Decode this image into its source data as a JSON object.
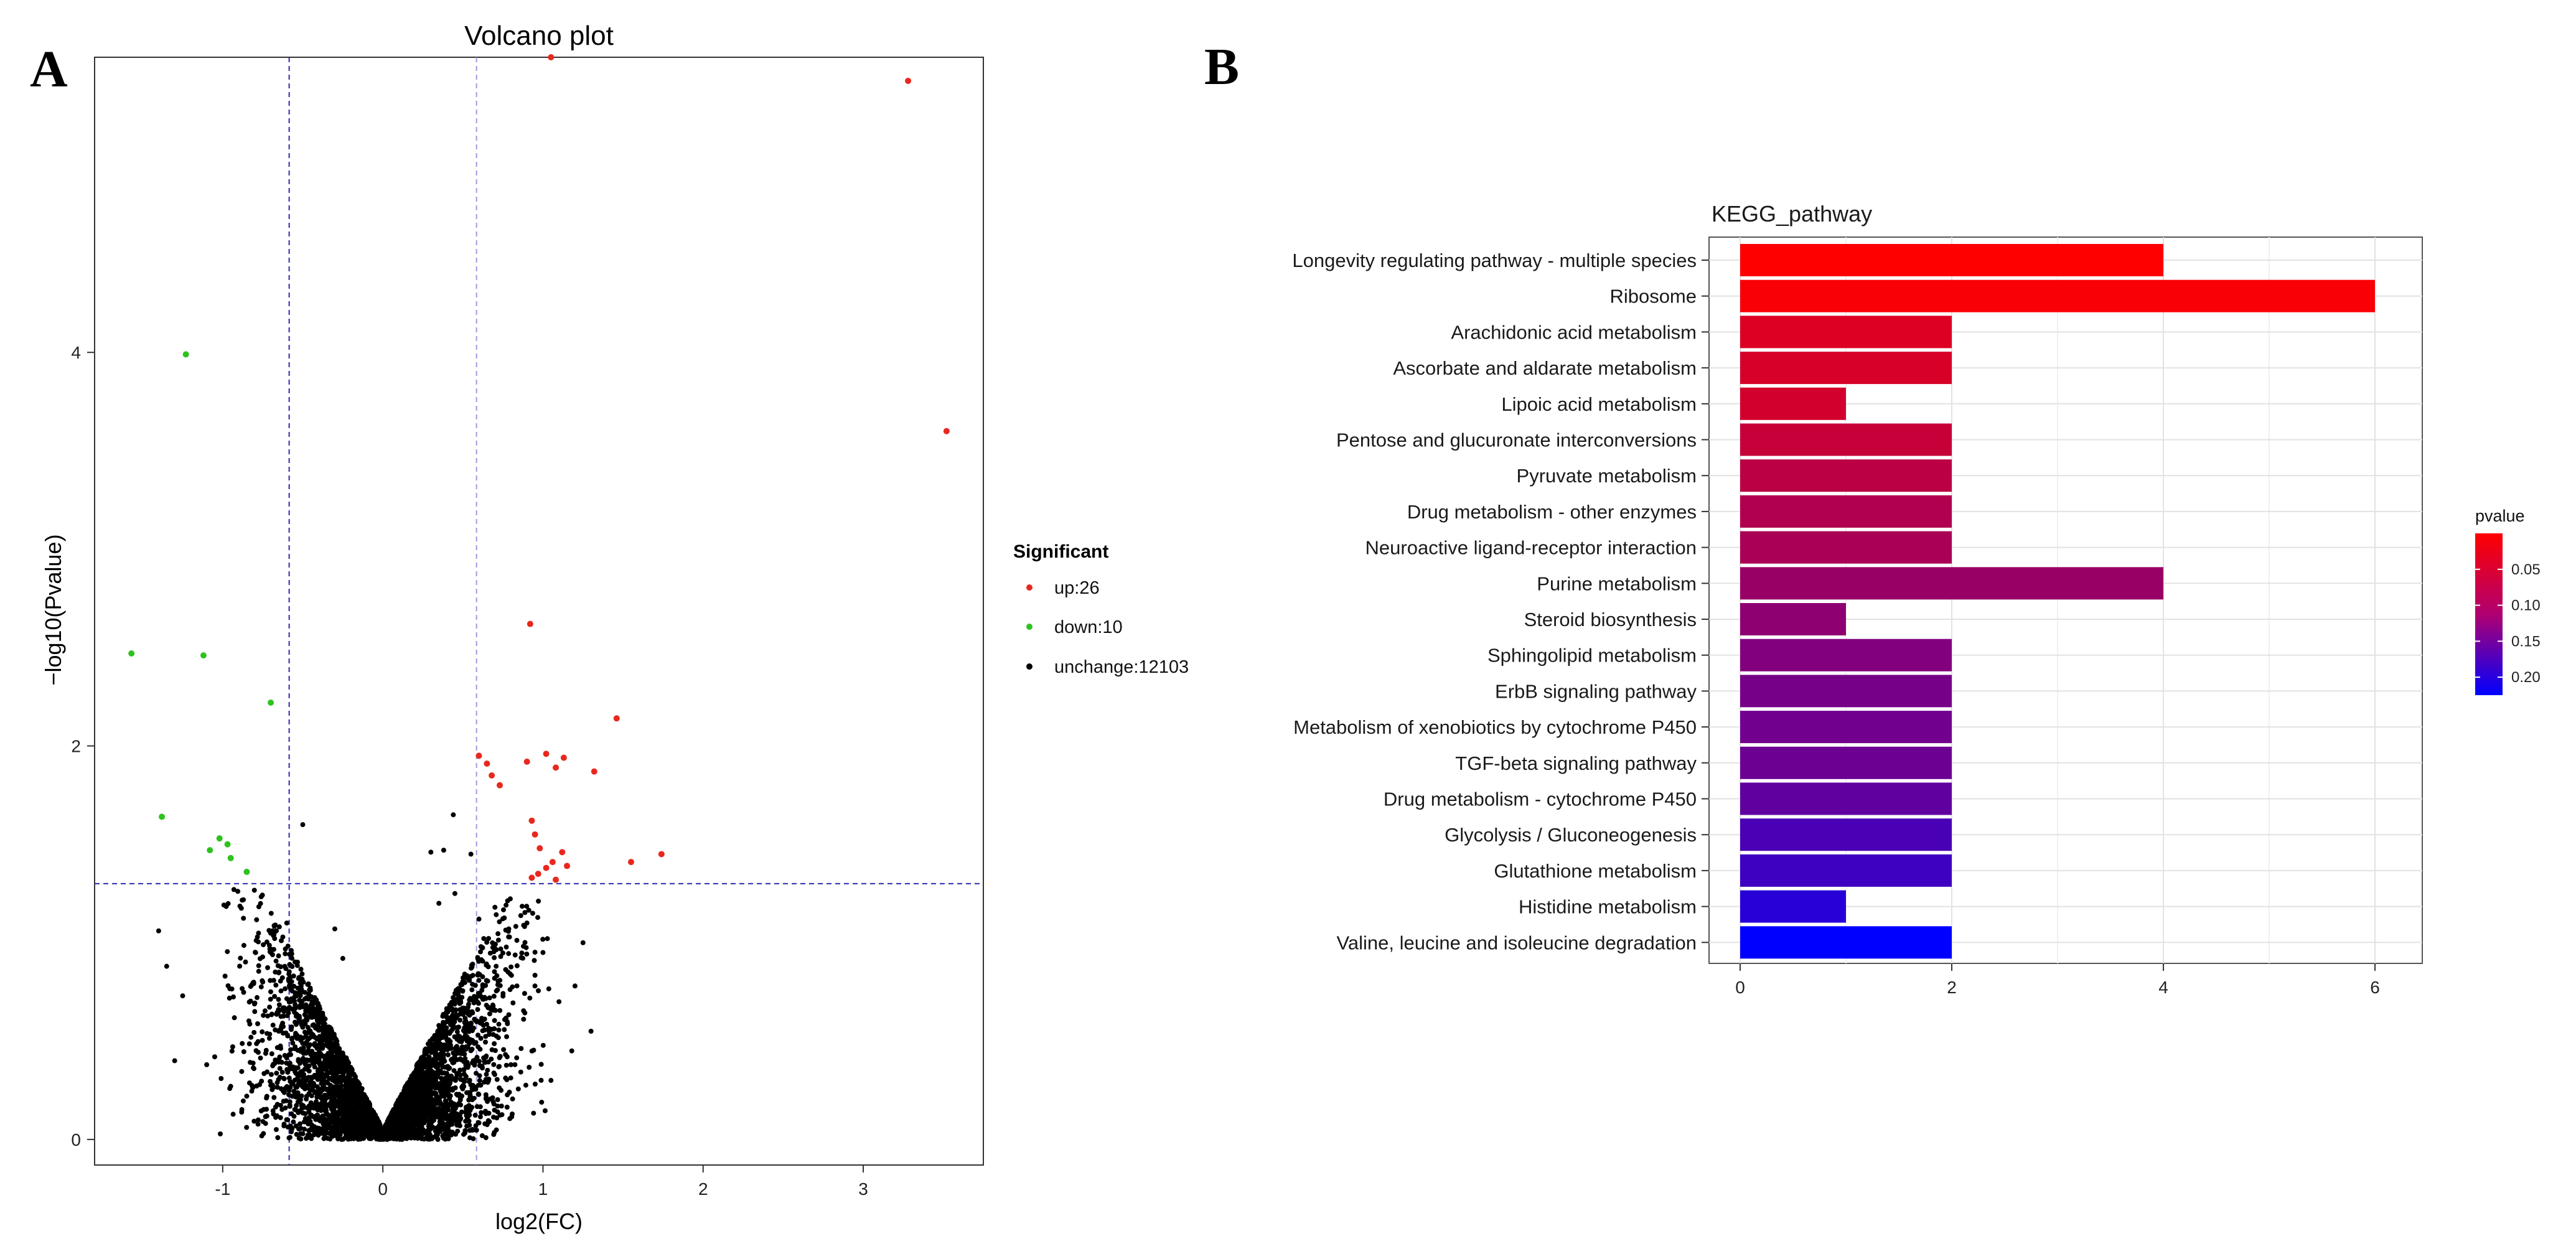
{
  "panels": {
    "a": "A",
    "b": "B"
  },
  "chart_data": [
    {
      "type": "scatter",
      "title": "Volcano plot",
      "xlabel": "log2(FC)",
      "ylabel": "−log10(Pvalue)",
      "xlim": [
        -1.8,
        3.75
      ],
      "ylim": [
        -0.13,
        5.5
      ],
      "x_ticks": [
        -1,
        0,
        1,
        2,
        3
      ],
      "y_ticks": [
        0,
        2,
        4
      ],
      "thresholds": {
        "log2fc": [
          -0.585,
          0.585
        ],
        "neg_log10_p": 1.3
      },
      "legend": {
        "title": "Significant",
        "items": [
          {
            "label": "up:26",
            "color": "#e8281e"
          },
          {
            "label": "down:10",
            "color": "#2fc21f"
          },
          {
            "label": "unchange:12103",
            "color": "#000000"
          }
        ]
      },
      "series": [
        {
          "name": "up",
          "color": "#e8281e",
          "points": [
            [
              1.05,
              5.5
            ],
            [
              3.28,
              5.38
            ],
            [
              3.52,
              3.6
            ],
            [
              0.92,
              2.62
            ],
            [
              1.46,
              2.14
            ],
            [
              0.6,
              1.95
            ],
            [
              0.65,
              1.91
            ],
            [
              0.68,
              1.85
            ],
            [
              0.73,
              1.8
            ],
            [
              0.9,
              1.92
            ],
            [
              1.02,
              1.96
            ],
            [
              1.08,
              1.89
            ],
            [
              1.13,
              1.94
            ],
            [
              1.32,
              1.87
            ],
            [
              0.93,
              1.62
            ],
            [
              0.95,
              1.55
            ],
            [
              0.98,
              1.48
            ],
            [
              1.06,
              1.41
            ],
            [
              1.12,
              1.46
            ],
            [
              1.55,
              1.41
            ],
            [
              1.74,
              1.45
            ],
            [
              0.93,
              1.33
            ],
            [
              0.97,
              1.35
            ],
            [
              1.02,
              1.38
            ],
            [
              1.08,
              1.32
            ],
            [
              1.15,
              1.39
            ]
          ]
        },
        {
          "name": "down",
          "color": "#2fc21f",
          "points": [
            [
              -1.23,
              3.99
            ],
            [
              -1.57,
              2.47
            ],
            [
              -1.12,
              2.46
            ],
            [
              -0.7,
              2.22
            ],
            [
              -1.38,
              1.64
            ],
            [
              -1.02,
              1.53
            ],
            [
              -0.97,
              1.5
            ],
            [
              -1.08,
              1.47
            ],
            [
              -0.95,
              1.43
            ],
            [
              -0.85,
              1.36
            ]
          ]
        },
        {
          "name": "unchange",
          "color": "#000000",
          "count": 12103,
          "points": [
            [
              -0.5,
              1.6
            ],
            [
              0.44,
              1.65
            ],
            [
              0.3,
              1.46
            ],
            [
              0.38,
              1.47
            ],
            [
              0.55,
              1.45
            ],
            [
              -1.4,
              1.06
            ],
            [
              -1.3,
              0.4
            ],
            [
              -1.35,
              0.88
            ],
            [
              -1.25,
              0.73
            ],
            [
              -0.93,
              1.27
            ],
            [
              -1.05,
              0.42
            ],
            [
              -1.1,
              0.38
            ],
            [
              -0.85,
              0.22
            ],
            [
              -0.95,
              0.27
            ],
            [
              1.3,
              0.55
            ],
            [
              1.2,
              0.78
            ],
            [
              1.25,
              1.0
            ],
            [
              1.1,
              0.7
            ],
            [
              1.0,
              0.95
            ],
            [
              0.9,
              1.1
            ],
            [
              0.95,
              0.78
            ],
            [
              1.18,
              0.45
            ],
            [
              1.05,
              0.3
            ],
            [
              0.8,
              0.38
            ],
            [
              -0.75,
              0.8
            ],
            [
              -0.7,
              0.95
            ],
            [
              -0.8,
              0.65
            ],
            [
              -0.6,
              1.1
            ],
            [
              -0.65,
              0.55
            ],
            [
              -0.3,
              1.07
            ],
            [
              -0.25,
              0.92
            ],
            [
              0.35,
              1.2
            ],
            [
              0.45,
              1.25
            ],
            [
              0.6,
              1.12
            ],
            [
              0.7,
              1.18
            ]
          ]
        }
      ]
    },
    {
      "type": "bar",
      "orientation": "horizontal",
      "title": "KEGG_pathway",
      "xlim": [
        0,
        6.3
      ],
      "x_ticks": [
        0,
        2,
        4,
        6
      ],
      "colorbar": {
        "title": "pvalue",
        "ticks": [
          0.05,
          0.1,
          0.15,
          0.2
        ],
        "tick_labels": [
          "0.05",
          "0.10",
          "0.15",
          "0.20"
        ],
        "range": [
          0.0,
          0.225
        ],
        "colors": [
          "#ff0000",
          "#0000ff"
        ]
      },
      "categories": [
        "Longevity regulating pathway - multiple species",
        "Ribosome",
        "Arachidonic acid metabolism",
        "Ascorbate and aldarate metabolism",
        "Lipoic acid metabolism",
        "Pentose and glucuronate interconversions",
        "Pyruvate metabolism",
        "Drug metabolism - other enzymes",
        "Neuroactive ligand-receptor interaction",
        "Purine metabolism",
        "Steroid biosynthesis",
        "Sphingolipid metabolism",
        "ErbB signaling pathway",
        "Metabolism of xenobiotics by cytochrome P450",
        "TGF-beta signaling pathway",
        "Drug metabolism - cytochrome P450",
        "Glycolysis / Gluconeogenesis",
        "Glutathione metabolism",
        "Histidine metabolism",
        "Valine, leucine and isoleucine degradation"
      ],
      "values": [
        4,
        6,
        2,
        2,
        1,
        2,
        2,
        2,
        2,
        4,
        1,
        2,
        2,
        2,
        2,
        2,
        2,
        2,
        1,
        2
      ],
      "pvalues": [
        0.0,
        0.005,
        0.03,
        0.035,
        0.04,
        0.05,
        0.06,
        0.07,
        0.075,
        0.09,
        0.1,
        0.11,
        0.12,
        0.125,
        0.13,
        0.14,
        0.16,
        0.17,
        0.19,
        0.225
      ]
    }
  ]
}
